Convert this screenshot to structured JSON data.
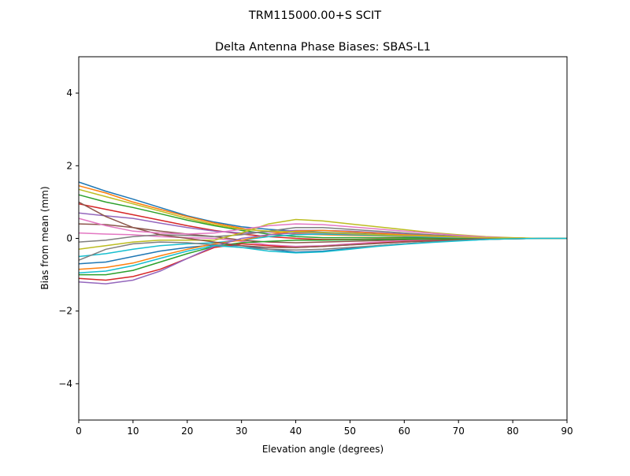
{
  "chart_data": {
    "type": "line",
    "suptitle": "TRM115000.00+S  SCIT",
    "title": "Delta Antenna Phase Biases: SBAS-L1",
    "xlabel": "Elevation angle (degrees)",
    "ylabel": "Bias from mean (mm)",
    "xlim": [
      0,
      90
    ],
    "ylim": [
      -5,
      5
    ],
    "xticks": [
      0,
      10,
      20,
      30,
      40,
      50,
      60,
      70,
      80,
      90
    ],
    "yticks": [
      -4,
      -2,
      0,
      2,
      4
    ],
    "ytick_labels": [
      "−4",
      "−2",
      "0",
      "2",
      "4"
    ],
    "grid": false,
    "x": [
      0,
      5,
      10,
      15,
      20,
      25,
      30,
      35,
      40,
      45,
      50,
      55,
      60,
      65,
      70,
      75,
      80,
      85,
      90
    ],
    "colors": [
      "#1f77b4",
      "#ff7f0e",
      "#2ca02c",
      "#d62728",
      "#9467bd",
      "#8c564b",
      "#e377c2",
      "#7f7f7f",
      "#bcbd22",
      "#17becf"
    ],
    "series": [
      {
        "values": [
          1.55,
          1.3,
          1.08,
          0.85,
          0.62,
          0.45,
          0.32,
          0.25,
          0.2,
          0.17,
          0.14,
          0.11,
          0.08,
          0.06,
          0.04,
          0.02,
          0.01,
          0,
          0
        ]
      },
      {
        "values": [
          1.45,
          1.25,
          1.0,
          0.8,
          0.6,
          0.42,
          0.28,
          0.18,
          0.12,
          0.1,
          0.08,
          0.07,
          0.05,
          0.04,
          0.03,
          0.02,
          0.01,
          0,
          0
        ]
      },
      {
        "values": [
          1.2,
          1.0,
          0.85,
          0.68,
          0.5,
          0.35,
          0.22,
          0.12,
          0.05,
          0.02,
          0.02,
          0.02,
          0.02,
          0.02,
          0.01,
          0.01,
          0,
          0,
          0
        ]
      },
      {
        "values": [
          0.95,
          0.8,
          0.65,
          0.5,
          0.35,
          0.22,
          0.12,
          0.05,
          0.0,
          -0.03,
          -0.03,
          -0.02,
          -0.02,
          -0.01,
          -0.01,
          0,
          0,
          0,
          0
        ]
      },
      {
        "values": [
          0.7,
          0.62,
          0.55,
          0.42,
          0.3,
          0.2,
          0.15,
          0.18,
          0.22,
          0.22,
          0.2,
          0.16,
          0.12,
          0.08,
          0.05,
          0.03,
          0.01,
          0,
          0
        ]
      },
      {
        "values": [
          0.4,
          0.38,
          0.3,
          0.2,
          0.12,
          0.05,
          -0.05,
          -0.1,
          -0.12,
          -0.1,
          -0.08,
          -0.06,
          -0.04,
          -0.03,
          -0.02,
          -0.01,
          0,
          0,
          0
        ]
      },
      {
        "values": [
          0.15,
          0.12,
          0.1,
          0.05,
          0.02,
          0.0,
          -0.08,
          -0.18,
          -0.22,
          -0.2,
          -0.15,
          -0.1,
          -0.07,
          -0.05,
          -0.03,
          -0.02,
          -0.01,
          0,
          0
        ]
      },
      {
        "values": [
          -0.1,
          -0.05,
          0.05,
          0.1,
          0.08,
          0.05,
          0.1,
          0.2,
          0.3,
          0.3,
          0.25,
          0.2,
          0.15,
          0.1,
          0.06,
          0.03,
          0.01,
          0,
          0
        ]
      },
      {
        "values": [
          -0.3,
          -0.2,
          -0.1,
          -0.05,
          -0.05,
          -0.05,
          0.15,
          0.4,
          0.52,
          0.48,
          0.4,
          0.32,
          0.24,
          0.16,
          0.1,
          0.05,
          0.02,
          0,
          0
        ]
      },
      {
        "values": [
          -0.5,
          -0.42,
          -0.3,
          -0.2,
          -0.15,
          -0.12,
          -0.05,
          0.05,
          0.1,
          0.12,
          0.1,
          0.08,
          0.06,
          0.04,
          0.02,
          0.01,
          0,
          0,
          0
        ]
      },
      {
        "values": [
          -0.7,
          -0.65,
          -0.5,
          -0.35,
          -0.25,
          -0.18,
          -0.2,
          -0.3,
          -0.38,
          -0.35,
          -0.28,
          -0.2,
          -0.15,
          -0.1,
          -0.06,
          -0.03,
          -0.01,
          0,
          0
        ]
      },
      {
        "values": [
          -0.85,
          -0.8,
          -0.68,
          -0.48,
          -0.3,
          -0.15,
          -0.05,
          0.1,
          0.2,
          0.22,
          0.18,
          0.14,
          0.1,
          0.07,
          0.04,
          0.02,
          0.01,
          0,
          0
        ]
      },
      {
        "values": [
          -1.0,
          -1.0,
          -0.88,
          -0.65,
          -0.42,
          -0.22,
          -0.12,
          -0.08,
          -0.05,
          -0.05,
          -0.04,
          -0.03,
          -0.02,
          -0.02,
          -0.01,
          0,
          0,
          0,
          0
        ]
      },
      {
        "values": [
          -1.1,
          -1.15,
          -1.05,
          -0.85,
          -0.55,
          -0.25,
          -0.15,
          -0.2,
          -0.25,
          -0.22,
          -0.18,
          -0.13,
          -0.09,
          -0.06,
          -0.04,
          -0.02,
          -0.01,
          0,
          0
        ]
      },
      {
        "values": [
          -1.2,
          -1.25,
          -1.15,
          -0.9,
          -0.55,
          -0.22,
          0.0,
          0.1,
          0.15,
          0.15,
          0.12,
          0.1,
          0.07,
          0.05,
          0.03,
          0.01,
          0,
          0,
          0
        ]
      },
      {
        "values": [
          1.0,
          0.6,
          0.3,
          0.1,
          0.0,
          -0.1,
          -0.2,
          -0.25,
          -0.25,
          -0.22,
          -0.18,
          -0.14,
          -0.1,
          -0.07,
          -0.04,
          -0.02,
          -0.01,
          0,
          0
        ]
      },
      {
        "values": [
          0.55,
          0.35,
          0.2,
          0.15,
          0.12,
          0.15,
          0.25,
          0.35,
          0.4,
          0.38,
          0.32,
          0.26,
          0.2,
          0.14,
          0.08,
          0.04,
          0.01,
          0,
          0
        ]
      },
      {
        "values": [
          -0.6,
          -0.3,
          -0.15,
          -0.1,
          -0.12,
          -0.18,
          -0.25,
          -0.3,
          -0.32,
          -0.3,
          -0.25,
          -0.2,
          -0.15,
          -0.1,
          -0.06,
          -0.03,
          -0.01,
          0,
          0
        ]
      },
      {
        "values": [
          1.35,
          1.15,
          0.95,
          0.75,
          0.55,
          0.38,
          0.25,
          0.2,
          0.18,
          0.16,
          0.13,
          0.1,
          0.08,
          0.06,
          0.04,
          0.02,
          0.01,
          0,
          0
        ]
      },
      {
        "values": [
          -0.95,
          -0.9,
          -0.75,
          -0.55,
          -0.35,
          -0.2,
          -0.25,
          -0.35,
          -0.4,
          -0.37,
          -0.3,
          -0.22,
          -0.16,
          -0.11,
          -0.07,
          -0.03,
          -0.01,
          0,
          0
        ]
      }
    ]
  }
}
